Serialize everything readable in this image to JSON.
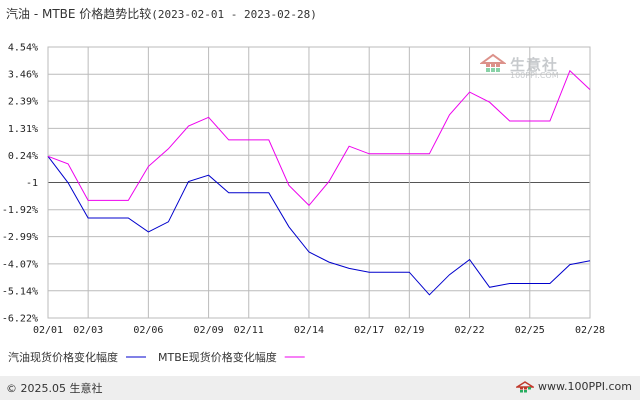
{
  "header": {
    "title_main": "汽油 - MTBE 价格趋势比较",
    "title_range": "(2023-02-01 - 2023-02-28)"
  },
  "watermark": {
    "brand": "生意社",
    "url": "100PPI.COM",
    "icon": "house-logo-icon"
  },
  "footer": {
    "copyright": "© 2025.05 生意社",
    "site": "www.100PPI.com",
    "icon": "logo-icon"
  },
  "colors": {
    "gasoline": "#0000cc",
    "mtbe": "#ee00ee",
    "grid": "#bbbbbb",
    "zero_line": "#555555"
  },
  "chart_data": {
    "type": "line",
    "title": "汽油 - MTBE 价格趋势比较(2023-02-01 - 2023-02-28)",
    "xlabel": "",
    "ylabel": "",
    "x": [
      "02/01",
      "02/02",
      "02/03",
      "02/04",
      "02/05",
      "02/06",
      "02/07",
      "02/08",
      "02/09",
      "02/10",
      "02/11",
      "02/12",
      "02/13",
      "02/14",
      "02/15",
      "02/16",
      "02/17",
      "02/18",
      "02/19",
      "02/20",
      "02/21",
      "02/22",
      "02/23",
      "02/24",
      "02/25",
      "02/26",
      "02/27",
      "02/28"
    ],
    "x_tick_labels": [
      "02/01",
      "02/03",
      "02/06",
      "02/09",
      "02/11",
      "02/14",
      "02/17",
      "02/19",
      "02/22",
      "02/25",
      "02/28"
    ],
    "y_tick_labels": [
      "4.54%",
      "3.46%",
      "2.39%",
      "1.31%",
      "0.24%",
      "-1",
      "-1.92%",
      "-2.99%",
      "-4.07%",
      "-5.14%",
      "-6.22%"
    ],
    "y_tick_values": [
      4.54,
      3.46,
      2.39,
      1.31,
      0.24,
      -0.84,
      -1.92,
      -2.99,
      -4.07,
      -5.14,
      -6.22
    ],
    "ylim": [
      -6.22,
      4.54
    ],
    "grid": true,
    "legend_position": "bottom-left",
    "series": [
      {
        "name": "汽油现货价格变化幅度",
        "values": [
          0.2,
          -0.85,
          -2.25,
          -2.25,
          -2.25,
          -2.8,
          -2.4,
          -0.8,
          -0.55,
          -1.25,
          -1.25,
          -1.25,
          -2.6,
          -3.6,
          -4.0,
          -4.25,
          -4.4,
          -4.4,
          -4.4,
          -5.3,
          -4.5,
          -3.9,
          -5.0,
          -4.85,
          -4.85,
          -4.85,
          -4.1,
          -3.95
        ]
      },
      {
        "name": "MTBE现货价格变化幅度",
        "values": [
          0.2,
          -0.1,
          -1.55,
          -1.55,
          -1.55,
          -0.2,
          0.5,
          1.4,
          1.75,
          0.85,
          0.85,
          0.85,
          -0.95,
          -1.75,
          -0.8,
          0.6,
          0.3,
          0.3,
          0.3,
          0.3,
          1.85,
          2.75,
          2.35,
          1.6,
          1.6,
          1.6,
          3.6,
          2.85
        ]
      }
    ]
  }
}
